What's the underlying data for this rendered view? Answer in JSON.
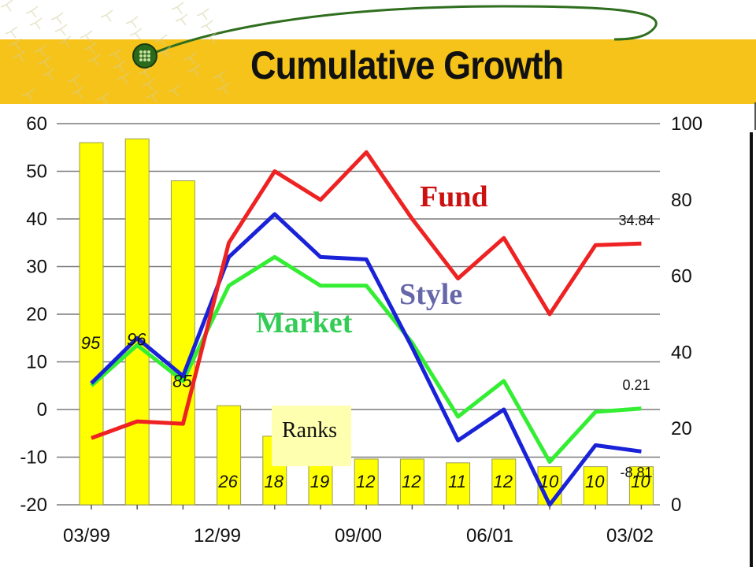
{
  "slide": {
    "title": "Cumulative Growth"
  },
  "colors": {
    "band": "#f6c31a",
    "bars": "#ffff00",
    "fund": "#ee2222",
    "style": "#1a22d8",
    "market": "#33ee33",
    "style_label": "#6666aa",
    "market_label": "#33cc55",
    "fund_label": "#cc1111"
  },
  "annotations": {
    "fund": "Fund",
    "style": "Style",
    "market": "Market",
    "ranks": "Ranks",
    "fund_end": "34.84",
    "market_end": "0.21",
    "style_end": "-8.81"
  },
  "chart_data": {
    "type": "bar",
    "title": "Cumulative Growth",
    "xlabel": "",
    "ylabel": "",
    "ylim": [
      -20,
      60
    ],
    "y2lim": [
      0,
      100
    ],
    "grid": true,
    "y_ticks": [
      "60",
      "50",
      "40",
      "30",
      "20",
      "10",
      "0",
      "-10",
      "-20"
    ],
    "y2_ticks": [
      "100",
      "80",
      "60",
      "40",
      "20",
      "0"
    ],
    "x_tick_labels": [
      "03/99",
      "12/99",
      "09/00",
      "06/01",
      "03/02"
    ],
    "categories": [
      "03/99",
      "",
      "",
      "12/99",
      "",
      "",
      "09/00",
      "",
      "",
      "06/01",
      "",
      "",
      "03/02"
    ],
    "series": [
      {
        "name": "Ranks",
        "type": "bar",
        "axis": "right",
        "values": [
          95,
          96,
          85,
          26,
          18,
          19,
          12,
          12,
          11,
          12,
          10,
          10,
          10
        ],
        "labels": [
          "95",
          "96",
          "85",
          "26",
          "18",
          "19",
          "12",
          "12",
          "11",
          "12",
          "10",
          "10",
          "10"
        ]
      },
      {
        "name": "Fund",
        "type": "line",
        "axis": "left",
        "values": [
          -6,
          -2.5,
          -3,
          35,
          50,
          44,
          54,
          40,
          27.5,
          36,
          20,
          34.5,
          34.84
        ]
      },
      {
        "name": "Style",
        "type": "line",
        "axis": "left",
        "values": [
          5.5,
          15,
          7,
          32,
          41,
          32,
          31.5,
          13,
          -6.5,
          0,
          -20,
          -7.5,
          -8.81
        ]
      },
      {
        "name": "Market",
        "type": "line",
        "axis": "left",
        "values": [
          5,
          13.5,
          6,
          26,
          32,
          26,
          26,
          14,
          -1.5,
          6,
          -11,
          -0.5,
          0.21
        ]
      }
    ]
  }
}
